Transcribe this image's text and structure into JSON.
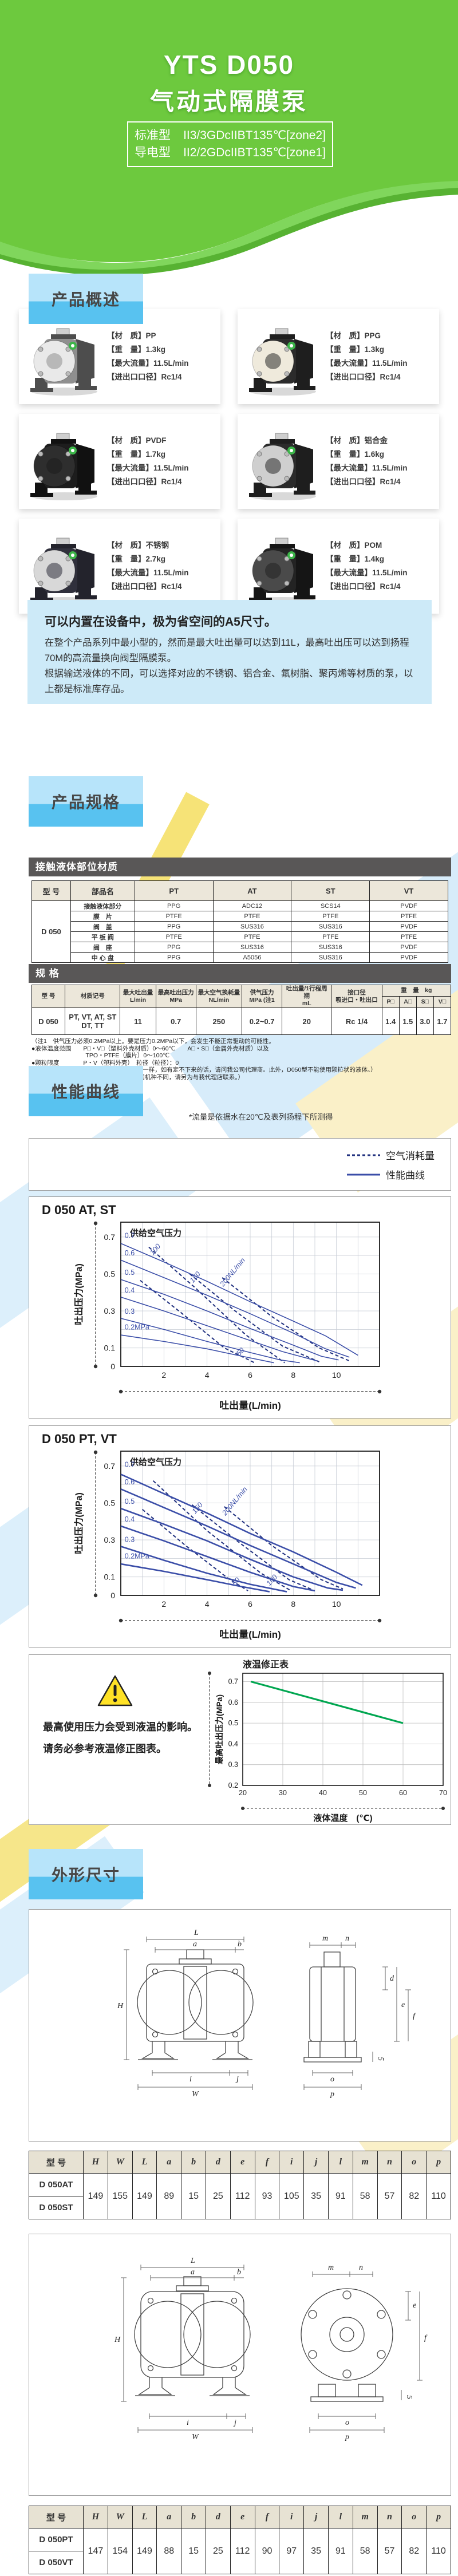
{
  "colors": {
    "header_green": "#6dc93e",
    "label_blue_top": "#b7e4fa",
    "label_blue_bottom": "#58c2f0",
    "bar_gray": "#595757",
    "intro_blue": "#cdeaf8",
    "curve_blue": "#3b4ea8",
    "air_blue": "#20307f",
    "correction_green": "#00a650",
    "warning_yellow": "#ffe226"
  },
  "header": {
    "title": "YTS D050",
    "subtitle": "气动式隔膜泵",
    "spec_rows": [
      {
        "label": "标准型",
        "value": "II3/3GDcIIBT135℃[zone2]"
      },
      {
        "label": "导电型",
        "value": "II2/2GDcIIBT135℃[zone1]"
      }
    ]
  },
  "section_labels": {
    "overview": "产品概述",
    "spec": "产品规格",
    "curves": "性能曲线",
    "dimensions": "外形尺寸"
  },
  "spec_field_labels": {
    "material": "【材　质】",
    "weight": "【重　量】",
    "flow": "【最大流量】",
    "port": "【进出口口径】"
  },
  "products": [
    {
      "material": "PP",
      "weight": "1.3kg",
      "flow": "11.5L/min",
      "port": "Rc1/4",
      "img": {
        "body": "#8f8f8f",
        "face": "#e9e9e9",
        "dark": "#4d4d4d"
      }
    },
    {
      "material": "PPG",
      "weight": "1.3kg",
      "flow": "11.5L/min",
      "port": "Rc1/4",
      "img": {
        "body": "#2b2b2b",
        "face": "#efeadc",
        "dark": "#1e1e1e"
      }
    },
    {
      "material": "PVDF",
      "weight": "1.7kg",
      "flow": "11.5L/min",
      "port": "Rc1/4",
      "img": {
        "body": "#1d1d1d",
        "face": "#2e2e2e",
        "dark": "#111111"
      }
    },
    {
      "material": "铝合金",
      "weight": "1.6kg",
      "flow": "11.5L/min",
      "port": "Rc1/4",
      "img": {
        "body": "#2b2b2b",
        "face": "#cfcfcf",
        "dark": "#1e1e1e"
      }
    },
    {
      "material": "不锈钢",
      "weight": "2.7kg",
      "flow": "11.5L/min",
      "port": "Rc1/4",
      "img": {
        "body": "#30303c",
        "face": "#d8d8d8",
        "dark": "#23232c"
      }
    },
    {
      "material": "POM",
      "weight": "1.4kg",
      "flow": "11.5L/min",
      "port": "Rc1/4",
      "img": {
        "body": "#232323",
        "face": "#4a4a4a",
        "dark": "#151515"
      }
    }
  ],
  "intro": {
    "title": "可以内置在设备中，极为省空间的A5尺寸。",
    "p1": "在整个产品系列中最小型的，然而是最大吐出量可以达到11L，最高吐出压可以达到扬程70M的高流量换向阀型隔膜泵。",
    "p2": "根据输送液体的不同，可以选择对应的不锈钢、铝合金、氟树脂、聚丙烯等材质的泵，以上都是标准库存品。"
  },
  "material_table": {
    "bar_title": "接触液体部位材质",
    "headers": [
      "型 号",
      "部品名",
      "PT",
      "AT",
      "ST",
      "VT"
    ],
    "model": "D 050",
    "rows": [
      {
        "name": "接触液体部分",
        "values": [
          "PPG",
          "ADC12",
          "SCS14",
          "PVDF"
        ]
      },
      {
        "name": "膜　片",
        "values": [
          "PTFE",
          "PTFE",
          "PTFE",
          "PTFE"
        ]
      },
      {
        "name": "阀　盖",
        "values": [
          "PPG",
          "SUS316",
          "SUS316",
          "PVDF"
        ]
      },
      {
        "name": "平 板 阀",
        "values": [
          "PTFE",
          "PTFE",
          "PTFE",
          "PTFE"
        ]
      },
      {
        "name": "阀　座",
        "values": [
          "PPG",
          "SUS316",
          "SUS316",
          "PVDF"
        ]
      },
      {
        "name": "中 心 盘",
        "values": [
          "PPG",
          "A5056",
          "SUS316",
          "PVDF"
        ]
      }
    ]
  },
  "spec_table": {
    "bar_title": "规 格",
    "col1_header": "型 号",
    "columns": [
      {
        "title": "材质记号",
        "unit": ""
      },
      {
        "title": "最大吐出量",
        "unit": "L/min"
      },
      {
        "title": "最高吐出压力",
        "unit": "MPa"
      },
      {
        "title": "最大空气换耗量",
        "unit": "NL/min"
      },
      {
        "title": "供气压力",
        "unit": "MPa (注1"
      },
      {
        "title": "吐出量/1行程周期",
        "unit": "mL"
      },
      {
        "title": "接口径",
        "unit": "吸进口・吐出口"
      }
    ],
    "weight_header": {
      "title": "重　量　kg",
      "subs": [
        "P□",
        "A□",
        "S□",
        "V□"
      ]
    },
    "row": {
      "model": "D 050",
      "codes": [
        "PT, VT, AT, ST",
        "DT, TT"
      ],
      "values": [
        "11",
        "0.7",
        "250",
        "0.2~0.7",
        "20",
        "Rc 1/4"
      ],
      "weights": [
        "1.4",
        "1.5",
        "3.0",
        "1.7"
      ]
    }
  },
  "spec_notes": [
    "（注1　供气压力必须0.2MPa以上。要是压力0.2MPa以下，会发生不能正常驱动的可能性。",
    "●液体温度范围　　P□・V□（塑料外壳材质）0～60℃　　A□・S□（金属外壳材质）以及",
    "　　　　　　　　　TPO・PTFE（膜片）0～100℃",
    "●颗粒限度　　　　P・V（塑料外壳）　粒径（粒径）：0",
    "　　　　　　　　　（每个型式的各情况不一样，如有定不下来的话，请问我公司代理商。此外，D050型不能使用颗粒状的液体。）",
    "●粘度限度　　　　最大500mPa・s（根据机种不同，请另为与我代理店联系。）"
  ],
  "curves_section": {
    "measure_note": "*流量是依据水在20℃及表列扬程下所测得",
    "legend": [
      {
        "label": "空气消耗量",
        "style": "dashed"
      },
      {
        "label": "性能曲线",
        "style": "solid"
      }
    ]
  },
  "warning": {
    "line1": "最高使用压力会受到液温的影响。",
    "line2": "请务必参考液温修正图表。"
  },
  "chart_data": [
    {
      "type": "line",
      "title": "D 050 AT, ST",
      "inner_label": "供给空气压力",
      "xlabel": "吐出量(L/min)",
      "ylabel": "吐出压力(MPa)",
      "xlim": [
        0,
        12
      ],
      "ylim": [
        0,
        0.78
      ],
      "grid": true,
      "xticks": [
        2,
        4,
        6,
        8,
        10
      ],
      "ytick_labels": [
        0.7,
        0.5,
        0.3,
        0.1
      ],
      "line_width": 1.6,
      "series": [
        {
          "name": "0.7",
          "label_at": [
            0.18,
            0.695
          ],
          "points": [
            [
              0,
              0.665
            ],
            [
              2,
              0.565
            ],
            [
              4,
              0.46
            ],
            [
              6,
              0.35
            ],
            [
              8,
              0.245
            ],
            [
              9.5,
              0.165
            ],
            [
              11,
              0.06
            ]
          ]
        },
        {
          "name": "0.6",
          "label_at": [
            0.18,
            0.6
          ],
          "points": [
            [
              0,
              0.575
            ],
            [
              2,
              0.48
            ],
            [
              4,
              0.385
            ],
            [
              6,
              0.285
            ],
            [
              8,
              0.18
            ],
            [
              9.5,
              0.095
            ],
            [
              10.6,
              0.05
            ]
          ]
        },
        {
          "name": "0.5",
          "label_at": [
            0.18,
            0.495
          ],
          "points": [
            [
              0,
              0.47
            ],
            [
              2,
              0.39
            ],
            [
              4,
              0.3
            ],
            [
              6,
              0.205
            ],
            [
              8,
              0.115
            ],
            [
              9.3,
              0.055
            ],
            [
              10.1,
              0.035
            ]
          ]
        },
        {
          "name": "0.4",
          "label_at": [
            0.18,
            0.4
          ],
          "points": [
            [
              0,
              0.375
            ],
            [
              2,
              0.3
            ],
            [
              4,
              0.22
            ],
            [
              6,
              0.14
            ],
            [
              7.5,
              0.08
            ],
            [
              9.1,
              0.03
            ]
          ]
        },
        {
          "name": "0.3",
          "label_at": [
            0.18,
            0.285
          ],
          "points": [
            [
              0,
              0.26
            ],
            [
              2,
              0.2
            ],
            [
              4,
              0.135
            ],
            [
              6,
              0.075
            ],
            [
              7.4,
              0.035
            ],
            [
              8.3,
              0.02
            ]
          ]
        },
        {
          "name": "0.2MPa",
          "label_at": [
            0.18,
            0.2
          ],
          "points": [
            [
              0,
              0.17
            ],
            [
              2,
              0.135
            ],
            [
              4,
              0.095
            ],
            [
              5.5,
              0.058
            ],
            [
              7.1,
              0.02
            ]
          ]
        }
      ],
      "air_series": [
        {
          "name": "50",
          "label_at": [
            5.5,
            0.055
          ],
          "rot": -48,
          "points": [
            [
              0.9,
              0.465
            ],
            [
              2.8,
              0.29
            ],
            [
              4.8,
              0.1
            ],
            [
              6.2,
              0.02
            ]
          ]
        },
        {
          "name": "100",
          "label_at": [
            1.5,
            0.6
          ],
          "rot": -50,
          "points": [
            [
              1.3,
              0.645
            ],
            [
              3.5,
              0.42
            ],
            [
              5.8,
              0.17
            ],
            [
              7.6,
              0.02
            ]
          ]
        },
        {
          "name": "150",
          "label_at": [
            3.35,
            0.45
          ],
          "rot": -50,
          "points": [
            [
              3.2,
              0.5
            ],
            [
              5.3,
              0.3
            ],
            [
              7.5,
              0.11
            ],
            [
              9.2,
              0.025
            ]
          ]
        },
        {
          "name": "200NL/min",
          "label_at": [
            4.75,
            0.43
          ],
          "rot": -50,
          "points": [
            [
              4.7,
              0.48
            ],
            [
              7,
              0.27
            ],
            [
              9.2,
              0.1
            ],
            [
              10.6,
              0.03
            ]
          ]
        }
      ]
    },
    {
      "type": "line",
      "title": "D 050 PT, VT",
      "inner_label": "供给空气压力",
      "xlabel": "吐出量(L/min)",
      "ylabel": "吐出压力(MPa)",
      "xlim": [
        0,
        12
      ],
      "ylim": [
        0,
        0.78
      ],
      "grid": true,
      "xticks": [
        2,
        4,
        6,
        8,
        10
      ],
      "ytick_labels": [
        0.7,
        0.5,
        0.3,
        0.1
      ],
      "line_width": 2.6,
      "series": [
        {
          "name": "0.7",
          "label_at": [
            0.18,
            0.695
          ],
          "points": [
            [
              0,
              0.655
            ],
            [
              2,
              0.55
            ],
            [
              4,
              0.445
            ],
            [
              6,
              0.335
            ],
            [
              8,
              0.235
            ],
            [
              10,
              0.125
            ],
            [
              11.2,
              0.055
            ]
          ]
        },
        {
          "name": "0.6",
          "label_at": [
            0.18,
            0.6
          ],
          "points": [
            [
              0,
              0.575
            ],
            [
              2,
              0.475
            ],
            [
              4,
              0.375
            ],
            [
              6,
              0.27
            ],
            [
              8,
              0.17
            ],
            [
              10,
              0.07
            ],
            [
              10.9,
              0.04
            ]
          ]
        },
        {
          "name": "0.5",
          "label_at": [
            0.18,
            0.495
          ],
          "points": [
            [
              0,
              0.47
            ],
            [
              2,
              0.385
            ],
            [
              4,
              0.295
            ],
            [
              6,
              0.195
            ],
            [
              8,
              0.1
            ],
            [
              9.6,
              0.04
            ],
            [
              10.3,
              0.028
            ]
          ]
        },
        {
          "name": "0.4",
          "label_at": [
            0.18,
            0.4
          ],
          "points": [
            [
              0,
              0.375
            ],
            [
              2,
              0.295
            ],
            [
              4,
              0.21
            ],
            [
              6,
              0.125
            ],
            [
              8,
              0.048
            ],
            [
              9,
              0.025
            ]
          ]
        },
        {
          "name": "0.3",
          "label_at": [
            0.18,
            0.29
          ],
          "points": [
            [
              0,
              0.265
            ],
            [
              2,
              0.19
            ],
            [
              4,
              0.12
            ],
            [
              6,
              0.06
            ],
            [
              7.7,
              0.02
            ]
          ]
        },
        {
          "name": "0.2MPa",
          "label_at": [
            0.18,
            0.2
          ],
          "points": [
            [
              0,
              0.17
            ],
            [
              2,
              0.13
            ],
            [
              4,
              0.085
            ],
            [
              5.5,
              0.05
            ],
            [
              6.9,
              0.02
            ]
          ]
        }
      ],
      "air_series": [
        {
          "name": "50",
          "label_at": [
            5.3,
            0.05
          ],
          "rot": -48,
          "points": [
            [
              1,
              0.465
            ],
            [
              3,
              0.27
            ],
            [
              5,
              0.09
            ],
            [
              5.9,
              0.025
            ]
          ]
        },
        {
          "name": "100",
          "label_at": [
            6.9,
            0.05
          ],
          "rot": -48,
          "points": [
            [
              1.5,
              0.62
            ],
            [
              4,
              0.35
            ],
            [
              6.5,
              0.12
            ],
            [
              7.9,
              0.025
            ]
          ]
        },
        {
          "name": "150",
          "label_at": [
            3.45,
            0.44
          ],
          "rot": -50,
          "points": [
            [
              3.3,
              0.49
            ],
            [
              5.5,
              0.285
            ],
            [
              7.8,
              0.085
            ],
            [
              8.9,
              0.03
            ]
          ]
        },
        {
          "name": "200NL/min",
          "label_at": [
            4.85,
            0.43
          ],
          "rot": -50,
          "points": [
            [
              4.8,
              0.48
            ],
            [
              7,
              0.27
            ],
            [
              9.3,
              0.085
            ],
            [
              10.3,
              0.035
            ]
          ]
        }
      ]
    },
    {
      "type": "line",
      "title": "液温修正表",
      "xlabel": "液体温度　(℃)",
      "ylabel": "最高吐出压力(MPa)",
      "xlim": [
        20,
        70
      ],
      "ylim": [
        0.2,
        0.74
      ],
      "grid": true,
      "xticks": [
        20,
        30,
        40,
        50,
        60,
        70
      ],
      "yticks": [
        0.2,
        0.3,
        0.4,
        0.5,
        0.6,
        0.7
      ],
      "line_color": "#00a650",
      "line_width": 3.2,
      "series": [
        {
          "name": "液温修正线",
          "points": [
            [
              22,
              0.7
            ],
            [
              60,
              0.5
            ]
          ]
        }
      ]
    }
  ],
  "drawing_labels": {
    "L": "L",
    "a": "a",
    "b": "b",
    "H": "H",
    "W": "W",
    "i": "i",
    "j": "j",
    "o": "o",
    "p": "p",
    "five": "5",
    "m": "m",
    "n": "n",
    "d": "d",
    "e": "e",
    "f": "f"
  },
  "dim_tables": [
    {
      "headers": [
        "型 号",
        "H",
        "W",
        "L",
        "a",
        "b",
        "d",
        "e",
        "f",
        "i",
        "j",
        "l",
        "m",
        "n",
        "o",
        "p"
      ],
      "models": [
        "D 050AT",
        "D 050ST"
      ],
      "values": [
        "149",
        "155",
        "149",
        "89",
        "15",
        "25",
        "112",
        "93",
        "105",
        "35",
        "91",
        "58",
        "57",
        "82",
        "110"
      ]
    },
    {
      "headers": [
        "型 号",
        "H",
        "W",
        "L",
        "a",
        "b",
        "d",
        "e",
        "f",
        "i",
        "j",
        "l",
        "m",
        "n",
        "o",
        "p"
      ],
      "models": [
        "D 050PT",
        "D 050VT"
      ],
      "values": [
        "147",
        "154",
        "149",
        "88",
        "15",
        "25",
        "112",
        "90",
        "97",
        "35",
        "91",
        "58",
        "57",
        "82",
        "110"
      ]
    }
  ]
}
